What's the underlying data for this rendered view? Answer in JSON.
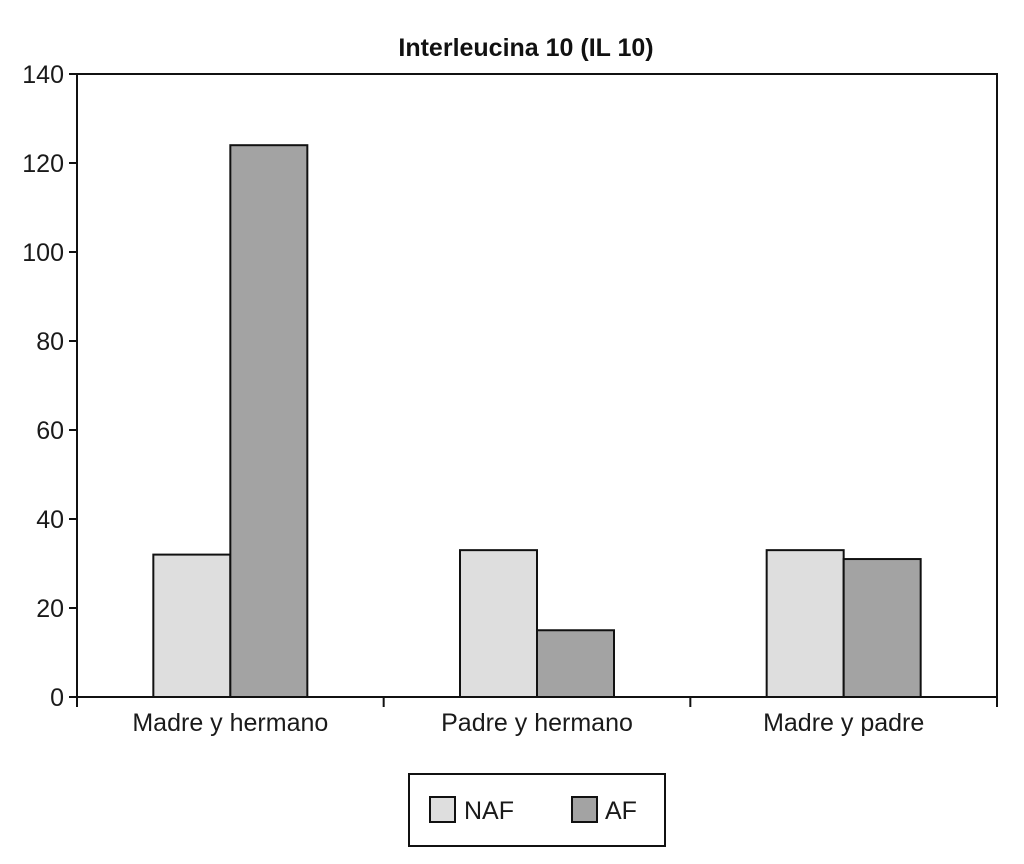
{
  "chart_data": {
    "type": "bar",
    "title": "Interleucina 10 (IL 10)",
    "xlabel": "",
    "ylabel": "",
    "categories": [
      "Madre y hermano",
      "Padre y hermano",
      "Madre y padre"
    ],
    "series": [
      {
        "name": "NAF",
        "values": [
          32,
          33,
          33
        ],
        "color": "#dedede"
      },
      {
        "name": "AF",
        "values": [
          124,
          15,
          31
        ],
        "color": "#a3a3a3"
      }
    ],
    "ylim": [
      0,
      140
    ],
    "yticks": [
      0,
      20,
      40,
      60,
      80,
      100,
      120,
      140
    ],
    "grid": false,
    "legend_position": "bottom-center"
  }
}
